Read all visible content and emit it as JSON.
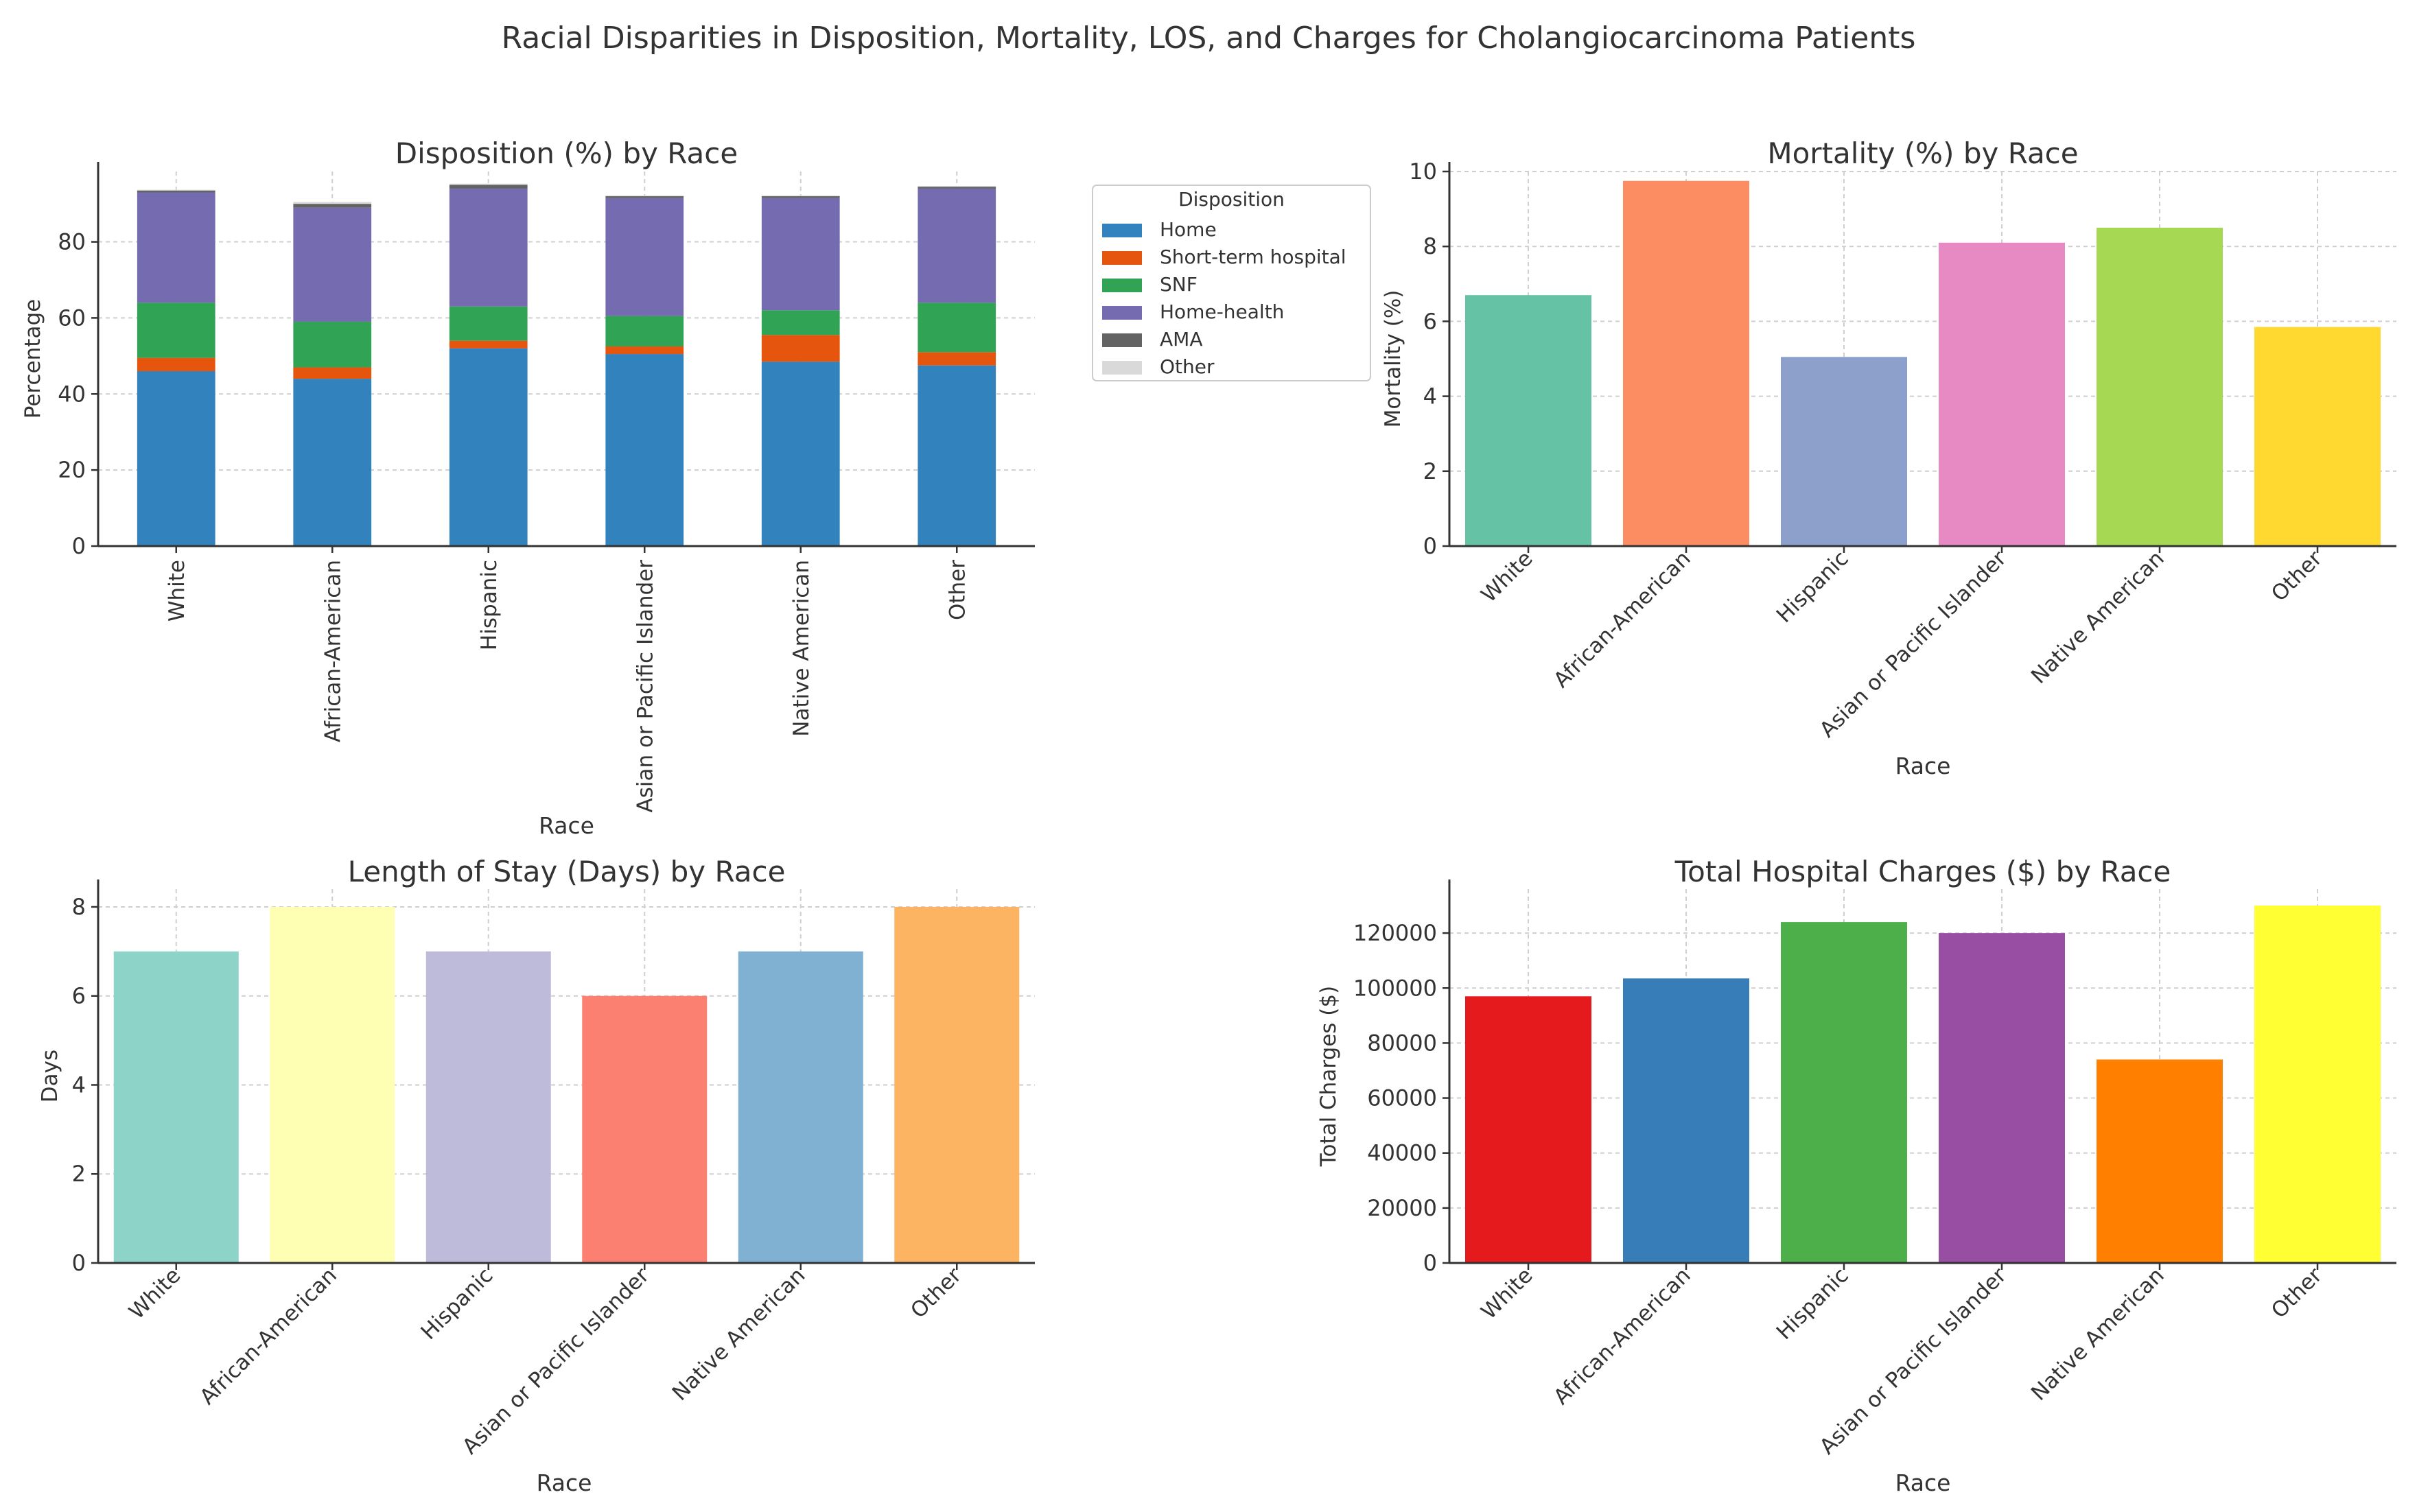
{
  "figure_title": "Racial Disparities in Disposition, Mortality, LOS, and Charges for Cholangiocarcinoma Patients",
  "chart_data": [
    {
      "type": "bar",
      "stacked": true,
      "title": "Disposition (%) by Race",
      "xlabel": "Race",
      "ylabel": "Percentage",
      "ylim": [
        0,
        98.5
      ],
      "yticks": [
        0,
        20,
        40,
        60,
        80
      ],
      "categories": [
        "White",
        "African-American",
        "Hispanic",
        "Asian or Pacific Islander",
        "Native American",
        "Other"
      ],
      "legend": {
        "title": "Disposition",
        "position": "outside-right"
      },
      "series": [
        {
          "name": "Home",
          "color": "#3182bd",
          "values": [
            46,
            44,
            52,
            50.5,
            48.5,
            47.5
          ]
        },
        {
          "name": "Short-term hospital",
          "color": "#e6550d",
          "values": [
            3.5,
            3,
            2,
            2,
            7,
            3.5
          ]
        },
        {
          "name": "SNF",
          "color": "#31a354",
          "values": [
            14.5,
            12,
            9,
            8,
            6.5,
            13
          ]
        },
        {
          "name": "Home-health",
          "color": "#756bb1",
          "values": [
            29,
            30,
            31,
            31,
            29.5,
            30
          ]
        },
        {
          "name": "AMA",
          "color": "#636363",
          "values": [
            0.5,
            1,
            1,
            0.5,
            0.5,
            0.5
          ]
        },
        {
          "name": "Other",
          "color": "#d9d9d9",
          "values": [
            0.2,
            0.5,
            0.3,
            0.2,
            0.2,
            0.2
          ]
        }
      ]
    },
    {
      "type": "bar",
      "title": "Mortality (%) by Race",
      "xlabel": "Race",
      "ylabel": "Mortality (%)",
      "ylim": [
        0,
        10
      ],
      "yticks": [
        0,
        2,
        4,
        6,
        8,
        10
      ],
      "categories": [
        "White",
        "African-American",
        "Hispanic",
        "Asian or Pacific Islander",
        "Native American",
        "Other"
      ],
      "values": [
        6.7,
        9.75,
        5.05,
        8.1,
        8.5,
        5.85
      ],
      "colors": [
        "#66c2a5",
        "#fc8d62",
        "#8da0cb",
        "#e78ac3",
        "#a6d854",
        "#ffd92f"
      ]
    },
    {
      "type": "bar",
      "title": "Length of Stay (Days) by Race",
      "xlabel": "",
      "ylabel": "Days",
      "ylim": [
        0,
        8.4
      ],
      "yticks": [
        0,
        2,
        4,
        6,
        8
      ],
      "categories": [
        "White",
        "African-American",
        "Hispanic",
        "Asian or Pacific Islander",
        "Native American",
        "Other"
      ],
      "values": [
        7,
        8,
        7,
        6,
        7,
        8
      ],
      "colors": [
        "#8dd3c7",
        "#ffffb3",
        "#bebada",
        "#fb8072",
        "#80b1d3",
        "#fdb462"
      ]
    },
    {
      "type": "bar",
      "title": "Total Hospital Charges ($) by Race",
      "xlabel": "Race",
      "ylabel": "Total Charges ($)",
      "ylim": [
        0,
        136000
      ],
      "yticks": [
        0,
        20000,
        40000,
        60000,
        80000,
        100000,
        120000
      ],
      "categories": [
        "White",
        "African-American",
        "Hispanic",
        "Asian or Pacific Islander",
        "Native American",
        "Other"
      ],
      "values": [
        97000,
        103500,
        124000,
        120000,
        74000,
        130000
      ],
      "colors": [
        "#e41a1c",
        "#377eb8",
        "#4daf4a",
        "#984ea3",
        "#ff7f00",
        "#ffff33"
      ]
    }
  ],
  "bottom_labels": {
    "left": "Race"
  }
}
